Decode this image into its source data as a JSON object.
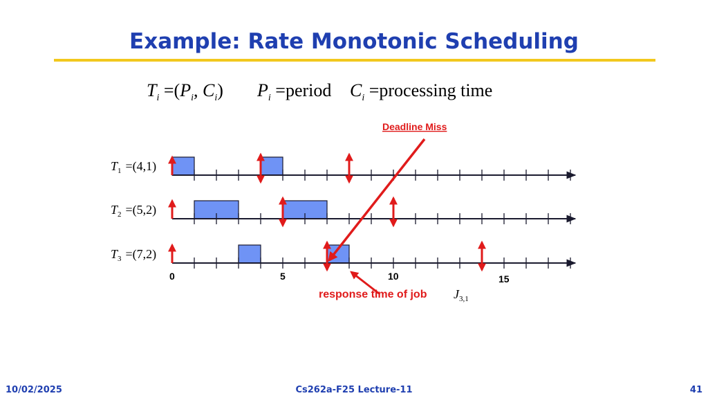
{
  "slide": {
    "title": "Example: Rate Monotonic Scheduling",
    "formula": {
      "t_def": "T",
      "t_sub": "i",
      "t_rhs_open": "=(",
      "p": "P",
      "p_sub": "i",
      "comma": ", ",
      "c": "C",
      "c_sub": "i",
      "close": ")",
      "p_def_p": "P",
      "p_def_sub": "i",
      "p_def_text": "=period",
      "c_def_c": "C",
      "c_def_sub": "i",
      "c_def_text": "=processing time"
    },
    "footer": {
      "date": "10/02/2025",
      "course": "Cs262a-F25 Lecture-11",
      "page": "41"
    }
  },
  "diagram": {
    "deadline_miss_label": "Deadline Miss",
    "response_label": "response time of job",
    "response_job": "J",
    "response_job_sub": "3,1",
    "axis_labels": [
      "0",
      "5",
      "10",
      "15"
    ],
    "max_time": 18,
    "colors": {
      "block": "#6f93f5",
      "arrow": "#e01b1b",
      "axis": "#1a1a2e"
    },
    "tasks": [
      {
        "name": "T",
        "sub": "1",
        "params": "=(4,1)",
        "period": 4,
        "cost": 1,
        "blocks": [
          [
            0,
            1
          ],
          [
            4,
            5
          ]
        ],
        "release_arrows": [
          0,
          4,
          8
        ]
      },
      {
        "name": "T",
        "sub": "2",
        "params": "=(5,2)",
        "period": 5,
        "cost": 2,
        "blocks": [
          [
            1,
            3
          ],
          [
            5,
            7
          ]
        ],
        "release_arrows": [
          0,
          5,
          10
        ]
      },
      {
        "name": "T",
        "sub": "3",
        "params": "=(7,2)",
        "period": 7,
        "cost": 2,
        "blocks": [
          [
            3,
            4
          ],
          [
            7,
            8
          ]
        ],
        "release_arrows": [
          0,
          7,
          14
        ]
      }
    ]
  }
}
